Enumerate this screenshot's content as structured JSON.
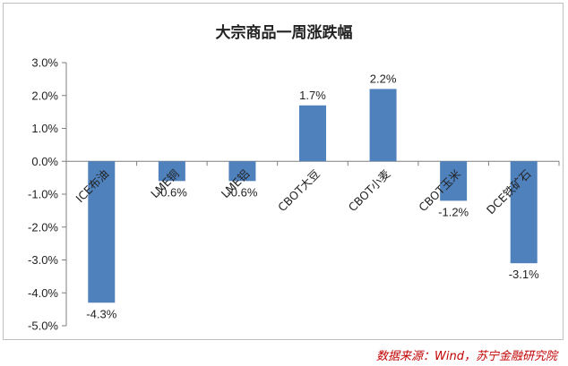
{
  "chart_data": {
    "type": "bar",
    "title": "大宗商品一周涨跌幅",
    "categories": [
      "ICE布油",
      "LME铜",
      "LME铝",
      "CBOT大豆",
      "CBOT小麦",
      "CBOT玉米",
      "DCE铁矿石"
    ],
    "values": [
      -4.3,
      -0.6,
      -0.6,
      1.7,
      2.2,
      -1.2,
      -3.1
    ],
    "data_labels": [
      "-4.3%",
      "-0.6%",
      "-0.6%",
      "1.7%",
      "2.2%",
      "-1.2%",
      "-3.1%"
    ],
    "ylim": [
      -5.0,
      3.0
    ],
    "yticks": [
      3.0,
      2.0,
      1.0,
      0.0,
      -1.0,
      -2.0,
      -3.0,
      -4.0,
      -5.0
    ],
    "ytick_labels": [
      "3.0%",
      "2.0%",
      "1.0%",
      "0.0%",
      "-1.0%",
      "-2.0%",
      "-3.0%",
      "-4.0%",
      "-5.0%"
    ],
    "bar_color": "#4f81bd",
    "grid": false,
    "legend": "none"
  },
  "source": "数据来源：Wind，苏宁金融研究院"
}
